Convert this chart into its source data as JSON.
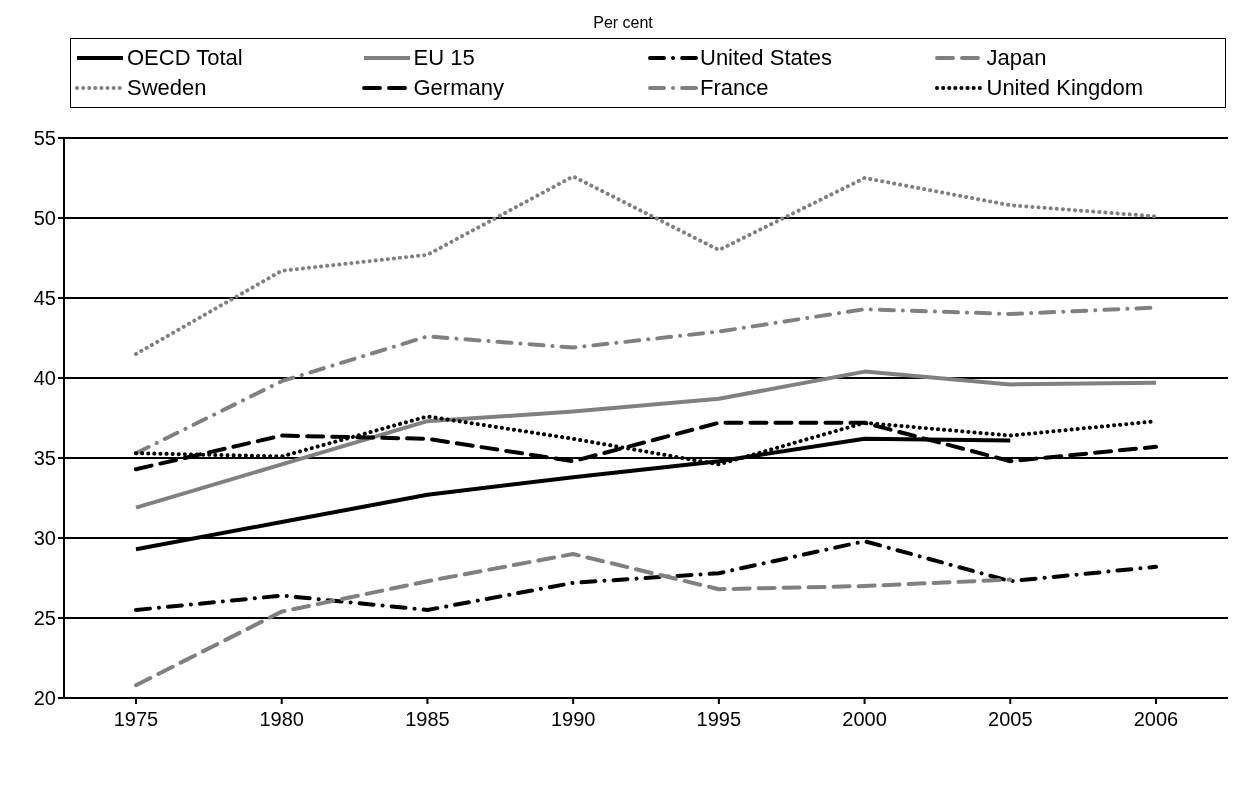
{
  "chart_data": {
    "type": "line",
    "title": "Per cent",
    "categories": [
      "1975",
      "1980",
      "1985",
      "1990",
      "1995",
      "2000",
      "2005",
      "2006"
    ],
    "series": [
      {
        "name": "OECD Total",
        "color": "#000000",
        "line_style": "solid",
        "values": [
          29.3,
          31.0,
          32.7,
          33.8,
          34.8,
          36.2,
          36.1,
          null
        ]
      },
      {
        "name": "EU 15",
        "color": "#808080",
        "line_style": "solid",
        "values": [
          31.9,
          34.6,
          37.3,
          37.9,
          38.7,
          40.4,
          39.6,
          39.7
        ]
      },
      {
        "name": "United States",
        "color": "#000000",
        "line_style": "dashdot",
        "values": [
          25.5,
          26.4,
          25.5,
          27.2,
          27.8,
          29.8,
          27.3,
          28.2
        ]
      },
      {
        "name": "Japan",
        "color": "#808080",
        "line_style": "dashed",
        "values": [
          20.8,
          25.4,
          27.3,
          29.0,
          26.8,
          27.0,
          27.4,
          null
        ]
      },
      {
        "name": "Sweden",
        "color": "#808080",
        "line_style": "dotted",
        "values": [
          41.5,
          46.7,
          47.7,
          52.6,
          48.0,
          52.5,
          50.8,
          50.1
        ]
      },
      {
        "name": "Germany",
        "color": "#000000",
        "line_style": "dashed",
        "values": [
          34.3,
          36.4,
          36.2,
          34.8,
          37.2,
          37.2,
          34.8,
          35.7
        ]
      },
      {
        "name": "France",
        "color": "#808080",
        "line_style": "dashdot",
        "values": [
          35.3,
          39.8,
          42.6,
          41.9,
          42.9,
          44.3,
          44.0,
          44.4
        ]
      },
      {
        "name": "United Kingdom",
        "color": "#000000",
        "line_style": "dotted",
        "values": [
          35.3,
          35.1,
          37.6,
          36.2,
          34.6,
          37.2,
          36.4,
          37.3
        ]
      }
    ],
    "ylim": [
      20,
      55
    ],
    "yticks": [
      20,
      25,
      30,
      35,
      40,
      45,
      50,
      55
    ],
    "grid": "y",
    "legend": "top",
    "marker": "none"
  }
}
